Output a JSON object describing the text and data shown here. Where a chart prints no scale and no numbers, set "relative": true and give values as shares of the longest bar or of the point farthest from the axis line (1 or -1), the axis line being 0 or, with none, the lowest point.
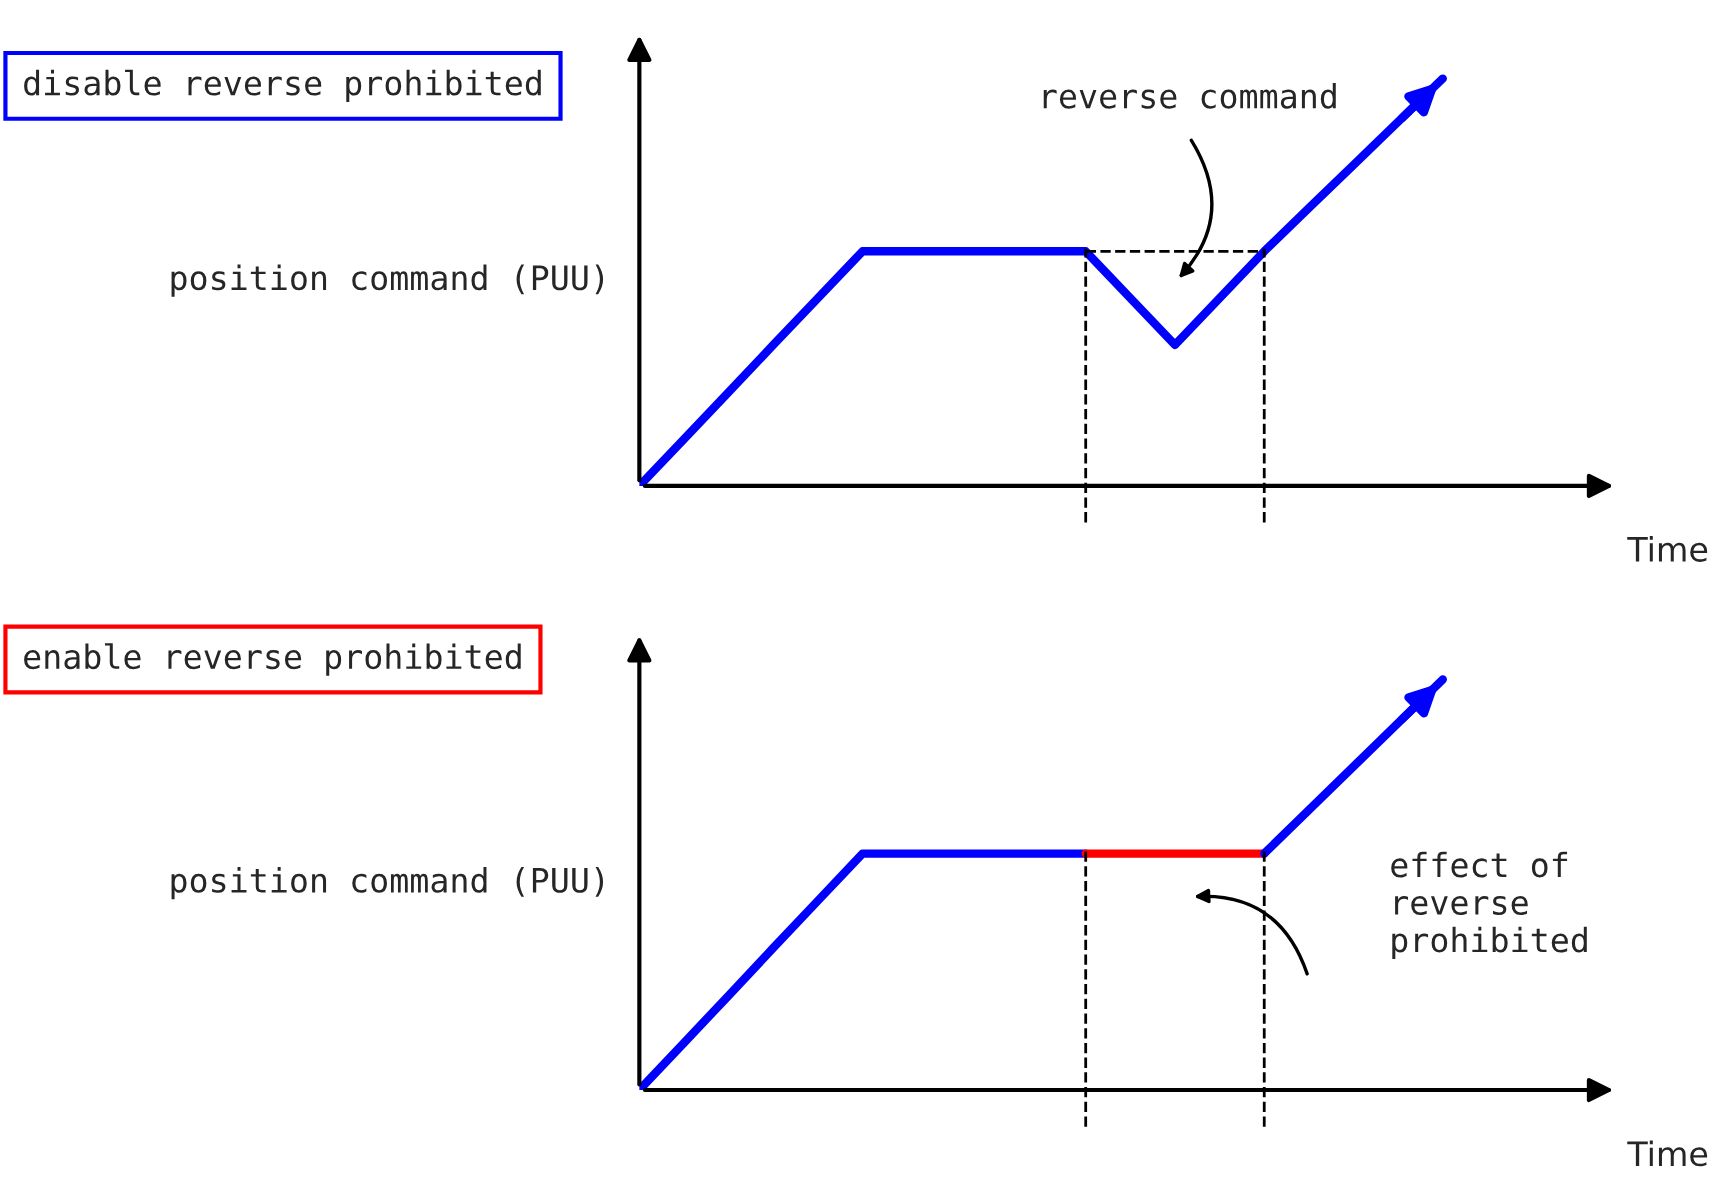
{
  "chart_data": [
    {
      "type": "line",
      "title": "disable reverse prohibited",
      "ylabel": "position command (PUU)",
      "xlabel": "Time",
      "relative": true,
      "legend": false,
      "marker": "none",
      "categories": [
        null,
        null,
        null,
        null,
        null,
        null,
        null,
        null,
        null,
        null,
        null,
        null,
        null,
        null,
        null,
        null,
        null,
        null,
        null
      ],
      "series": [
        {
          "color": "#0000ff",
          "values": [
            0,
            0.115,
            0.23,
            0.346,
            0.461,
            0.576,
            0.576,
            0.576,
            0.576,
            0.576,
            0.576,
            0.461,
            0.346,
            0.461,
            0.576,
            0.682,
            0.788,
            0.894,
            1
          ]
        }
      ],
      "ref_lines": [
        {
          "axis": "x",
          "value": null,
          "line_style": "dashed",
          "color": "#000000"
        },
        {
          "axis": "x",
          "value": null,
          "line_style": "dashed",
          "color": "#000000"
        },
        {
          "axis": "y",
          "value": 0.576,
          "line_style": "dashed",
          "color": "#000000"
        }
      ],
      "annotations": [
        "reverse command"
      ]
    },
    {
      "type": "line",
      "title": "enable reverse prohibited",
      "ylabel": "position command (PUU)",
      "xlabel": "Time",
      "relative": true,
      "legend": false,
      "marker": "none",
      "categories": [
        null,
        null,
        null,
        null,
        null,
        null,
        null,
        null,
        null,
        null,
        null,
        null,
        null,
        null,
        null,
        null,
        null,
        null,
        null
      ],
      "series": [
        {
          "color": "#0000ff",
          "values": [
            0,
            0.115,
            0.23,
            0.346,
            0.461,
            0.576,
            0.576,
            0.576,
            0.576,
            0.576,
            0.576,
            null,
            null,
            null,
            null,
            null,
            null,
            null,
            null
          ]
        },
        {
          "color": "#ff0000",
          "values": [
            null,
            null,
            null,
            null,
            null,
            null,
            null,
            null,
            null,
            null,
            0.576,
            0.576,
            0.576,
            0.576,
            0.576,
            null,
            null,
            null,
            null
          ]
        },
        {
          "color": "#0000ff",
          "values": [
            null,
            null,
            null,
            null,
            null,
            null,
            null,
            null,
            null,
            null,
            null,
            null,
            null,
            null,
            0.576,
            0.682,
            0.788,
            0.894,
            1
          ]
        }
      ],
      "ref_lines": [
        {
          "axis": "x",
          "value": null,
          "line_style": "dashed",
          "color": "#000000"
        },
        {
          "axis": "x",
          "value": null,
          "line_style": "dashed",
          "color": "#000000"
        }
      ],
      "annotations": [
        "effect of reverse prohibited"
      ]
    }
  ]
}
